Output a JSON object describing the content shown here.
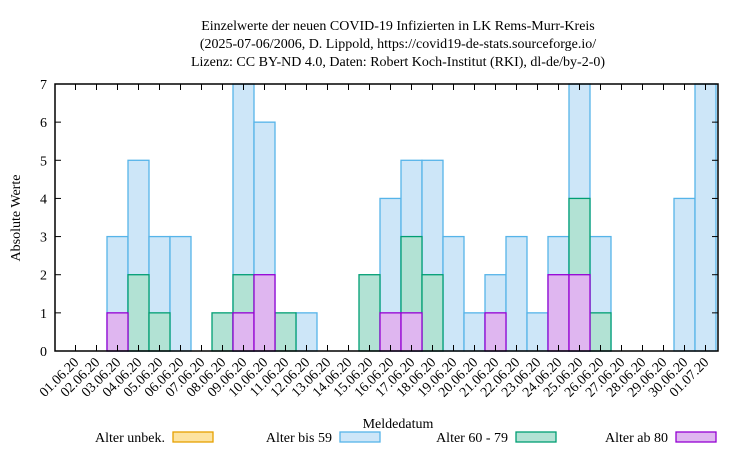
{
  "chart_data": {
    "type": "bar",
    "title": [
      "Einzelwerte der neuen COVID-19 Infizierten in LK Rems-Murr-Kreis",
      "(2025-07-06/2006, D. Lippold, https://covid19-de-stats.sourceforge.io/",
      "Lizenz: CC BY-ND 4.0, Daten: Robert Koch-Institut (RKI), dl-de/by-2-0)"
    ],
    "xlabel": "Meldedatum",
    "ylabel": "Absolute Werte",
    "ylim": [
      0,
      7
    ],
    "yticks": [
      "0",
      "1",
      "2",
      "3",
      "4",
      "5",
      "6",
      "7"
    ],
    "categories": [
      "01.06.20",
      "02.06.20",
      "03.06.20",
      "04.06.20",
      "05.06.20",
      "06.06.20",
      "07.06.20",
      "08.06.20",
      "09.06.20",
      "10.06.20",
      "11.06.20",
      "12.06.20",
      "13.06.20",
      "14.06.20",
      "15.06.20",
      "16.06.20",
      "17.06.20",
      "18.06.20",
      "19.06.20",
      "20.06.20",
      "21.06.20",
      "22.06.20",
      "23.06.20",
      "24.06.20",
      "25.06.20",
      "26.06.20",
      "27.06.20",
      "28.06.20",
      "29.06.20",
      "30.06.20",
      "01.07.20"
    ],
    "legend_position": "bottom",
    "series": [
      {
        "name": "Alter unbek.",
        "color": "#e6a000",
        "fill": "#fde3a0",
        "values": [
          0,
          0,
          0,
          0,
          0,
          0,
          0,
          0,
          0,
          0,
          0,
          0,
          0,
          0,
          0,
          0,
          0,
          0,
          0,
          0,
          0,
          0,
          0,
          0,
          0,
          0,
          0,
          0,
          0,
          0,
          0
        ]
      },
      {
        "name": "Alter bis 59",
        "color": "#56b4e9",
        "fill": "#cde6f8",
        "values": [
          0,
          0,
          3,
          5,
          3,
          3,
          0,
          0,
          7,
          6,
          0,
          1,
          0,
          0,
          0,
          4,
          5,
          5,
          3,
          1,
          2,
          3,
          1,
          3,
          7,
          3,
          0,
          0,
          0,
          4,
          7
        ]
      },
      {
        "name": "Alter 60 - 79",
        "color": "#009e73",
        "fill": "#b2e2d4",
        "values": [
          0,
          0,
          0,
          2,
          1,
          0,
          0,
          1,
          2,
          0,
          1,
          0,
          0,
          0,
          2,
          0,
          3,
          2,
          0,
          0,
          0,
          0,
          0,
          0,
          4,
          1,
          0,
          0,
          0,
          0,
          0
        ]
      },
      {
        "name": "Alter ab 80",
        "color": "#9400d3",
        "fill": "#dfb6f0",
        "values": [
          0,
          0,
          1,
          0,
          0,
          0,
          0,
          0,
          1,
          2,
          0,
          0,
          0,
          0,
          0,
          1,
          1,
          0,
          0,
          0,
          1,
          0,
          0,
          2,
          2,
          0,
          0,
          0,
          0,
          0,
          0
        ]
      }
    ]
  }
}
